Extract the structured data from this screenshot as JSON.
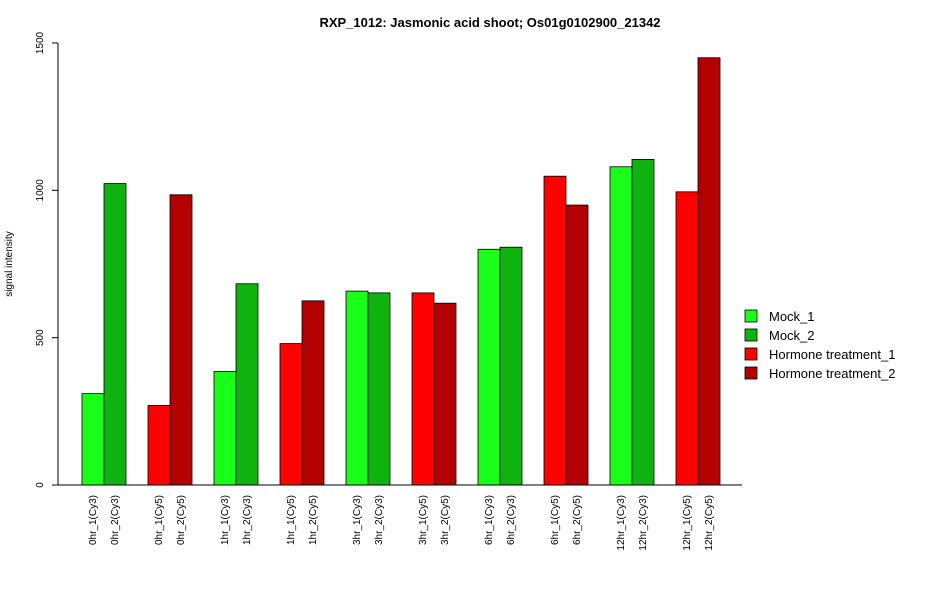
{
  "chart_data": {
    "type": "bar",
    "title": "RXP_1012: Jasmonic acid shoot; Os01g0102900_21342",
    "xlabel": "",
    "ylabel": "signal intensity",
    "ylim": [
      0,
      1500
    ],
    "yticks": [
      0,
      500,
      1000,
      1500
    ],
    "grid": false,
    "legend_position": "right",
    "series": [
      {
        "name": "Mock_1",
        "color": "#19FF19"
      },
      {
        "name": "Mock_2",
        "color": "#0FB30F"
      },
      {
        "name": "Hormone treatment_1",
        "color": "#FF0000"
      },
      {
        "name": "Hormone treatment_2",
        "color": "#B30000"
      }
    ],
    "bars": [
      {
        "label": "0hr_1(Cy3)",
        "value": 310,
        "series": 0
      },
      {
        "label": "0hr_2(Cy3)",
        "value": 1023,
        "series": 1
      },
      {
        "label": "0hr_1(Cy5)",
        "value": 270,
        "series": 2
      },
      {
        "label": "0hr_2(Cy5)",
        "value": 985,
        "series": 3
      },
      {
        "label": "1hr_1(Cy3)",
        "value": 385,
        "series": 0
      },
      {
        "label": "1hr_2(Cy3)",
        "value": 683,
        "series": 1
      },
      {
        "label": "1hr_1(Cy5)",
        "value": 480,
        "series": 2
      },
      {
        "label": "1hr_2(Cy5)",
        "value": 625,
        "series": 3
      },
      {
        "label": "3hr_1(Cy3)",
        "value": 658,
        "series": 0
      },
      {
        "label": "3hr_2(Cy3)",
        "value": 652,
        "series": 1
      },
      {
        "label": "3hr_1(Cy5)",
        "value": 652,
        "series": 2
      },
      {
        "label": "3hr_2(Cy5)",
        "value": 617,
        "series": 3
      },
      {
        "label": "6hr_1(Cy3)",
        "value": 800,
        "series": 0
      },
      {
        "label": "6hr_2(Cy3)",
        "value": 807,
        "series": 1
      },
      {
        "label": "6hr_1(Cy5)",
        "value": 1048,
        "series": 2
      },
      {
        "label": "6hr_2(Cy5)",
        "value": 950,
        "series": 3
      },
      {
        "label": "12hr_1(Cy3)",
        "value": 1080,
        "series": 0
      },
      {
        "label": "12hr_2(Cy3)",
        "value": 1105,
        "series": 1
      },
      {
        "label": "12hr_1(Cy5)",
        "value": 995,
        "series": 2
      },
      {
        "label": "12hr_2(Cy5)",
        "value": 1450,
        "series": 3
      }
    ]
  }
}
